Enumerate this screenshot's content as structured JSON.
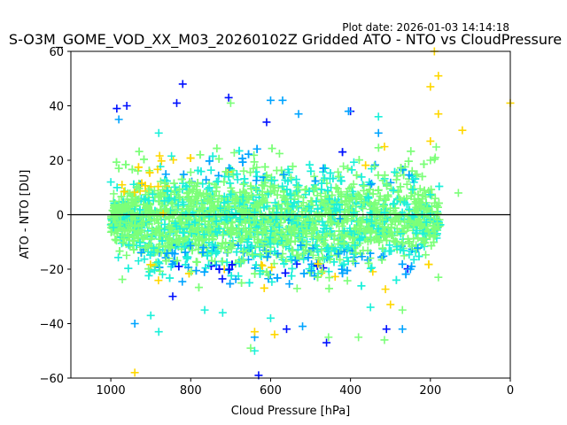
{
  "chart_data": {
    "type": "scatter",
    "title": "S-O3M_GOME_VOD_XX_M03_20260102Z Gridded ATO - NTO vs CloudPressure",
    "plot_date": "Plot date: 2026-01-03 14:14:18",
    "xlabel": "Cloud Pressure [hPa]",
    "ylabel": "ATO - NTO [DU]",
    "xlim": [
      1100,
      0
    ],
    "ylim": [
      -60,
      60
    ],
    "x_inverted": true,
    "xticks": [
      1000,
      800,
      600,
      400,
      200,
      0
    ],
    "yticks": [
      -60,
      -40,
      -20,
      0,
      20,
      40,
      60
    ],
    "reference_line": {
      "y": 0,
      "color": "#000000"
    },
    "grid": false,
    "marker": "plus",
    "colors": [
      "#0010ff",
      "#00a4ff",
      "#1cf0da",
      "#7cff79",
      "#ffd700"
    ],
    "cloud": {
      "x_range": [
        175,
        1000
      ],
      "core_y_range": [
        -28,
        25
      ],
      "fringe_y_range": [
        -45,
        40
      ]
    },
    "series": [
      {
        "color": "#0010ff",
        "points": [
          [
            820,
            48
          ],
          [
            705,
            43
          ],
          [
            630,
            -59
          ],
          [
            960,
            40
          ],
          [
            985,
            39
          ],
          [
            835,
            41
          ],
          [
            610,
            34
          ],
          [
            400,
            38
          ],
          [
            845,
            -30
          ],
          [
            460,
            -47
          ],
          [
            310,
            -42
          ],
          [
            560,
            -42
          ]
        ]
      },
      {
        "color": "#00a4ff",
        "points": [
          [
            600,
            42
          ],
          [
            570,
            42
          ],
          [
            940,
            -40
          ],
          [
            640,
            -45
          ],
          [
            405,
            38
          ],
          [
            330,
            30
          ],
          [
            250,
            -20
          ],
          [
            530,
            37
          ],
          [
            980,
            35
          ],
          [
            270,
            -42
          ],
          [
            520,
            -41
          ]
        ]
      },
      {
        "color": "#1cf0da",
        "points": [
          [
            720,
            -36
          ],
          [
            765,
            -35
          ],
          [
            900,
            -37
          ],
          [
            880,
            -43
          ],
          [
            640,
            -50
          ],
          [
            350,
            -34
          ],
          [
            330,
            36
          ],
          [
            1000,
            12
          ],
          [
            880,
            30
          ],
          [
            600,
            -38
          ]
        ]
      },
      {
        "color": "#7cff79",
        "points": [
          [
            650,
            -49
          ],
          [
            700,
            41
          ],
          [
            455,
            -45
          ],
          [
            315,
            -46
          ],
          [
            130,
            8
          ],
          [
            180,
            -23
          ],
          [
            200,
            20
          ],
          [
            380,
            -45
          ],
          [
            270,
            -35
          ]
        ]
      },
      {
        "color": "#ffd700",
        "points": [
          [
            190,
            60
          ],
          [
            180,
            51
          ],
          [
            200,
            47
          ],
          [
            180,
            37
          ],
          [
            120,
            31
          ],
          [
            200,
            27
          ],
          [
            0,
            41
          ],
          [
            940,
            -58
          ],
          [
            640,
            -43
          ],
          [
            590,
            -44
          ],
          [
            300,
            -33
          ],
          [
            315,
            25
          ]
        ]
      }
    ]
  }
}
